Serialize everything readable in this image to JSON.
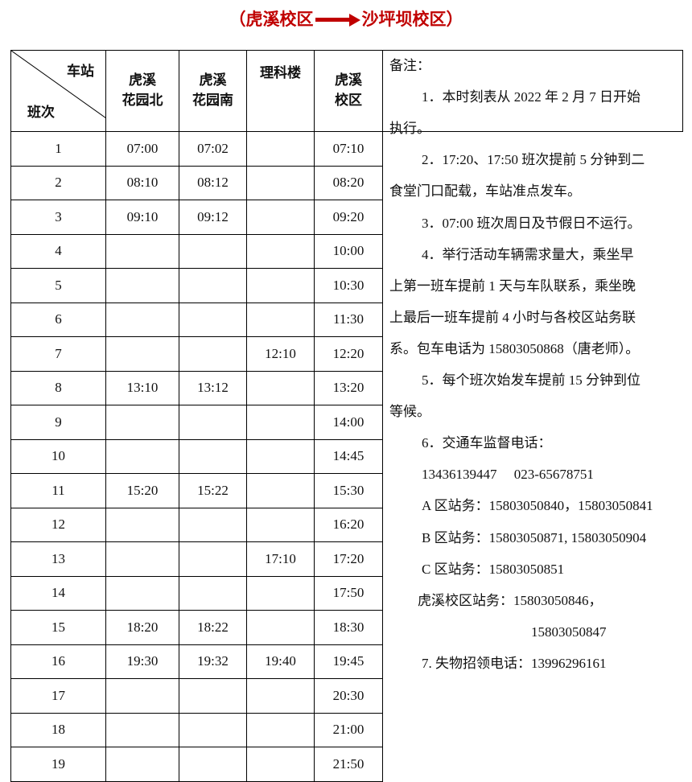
{
  "title": {
    "from": "（虎溪校区",
    "to": "沙坪坝校区）",
    "arrow_icon": "right-arrow",
    "color": "#c00000"
  },
  "header": {
    "station_label": "车站",
    "trip_label": "班次",
    "columns": [
      [
        "虎溪",
        "花园北"
      ],
      [
        "虎溪",
        "花园南"
      ],
      [
        "理科楼",
        ""
      ],
      [
        "虎溪",
        "校区"
      ]
    ]
  },
  "rows": [
    [
      "1",
      "07:00",
      "07:02",
      "",
      "07:10"
    ],
    [
      "2",
      "08:10",
      "08:12",
      "",
      "08:20"
    ],
    [
      "3",
      "09:10",
      "09:12",
      "",
      "09:20"
    ],
    [
      "4",
      "",
      "",
      "",
      "10:00"
    ],
    [
      "5",
      "",
      "",
      "",
      "10:30"
    ],
    [
      "6",
      "",
      "",
      "",
      "11:30"
    ],
    [
      "7",
      "",
      "",
      "12:10",
      "12:20"
    ],
    [
      "8",
      "13:10",
      "13:12",
      "",
      "13:20"
    ],
    [
      "9",
      "",
      "",
      "",
      "14:00"
    ],
    [
      "10",
      "",
      "",
      "",
      "14:45"
    ],
    [
      "11",
      "15:20",
      "15:22",
      "",
      "15:30"
    ],
    [
      "12",
      "",
      "",
      "",
      "16:20"
    ],
    [
      "13",
      "",
      "",
      "17:10",
      "17:20"
    ],
    [
      "14",
      "",
      "",
      "",
      "17:50"
    ],
    [
      "15",
      "18:20",
      "18:22",
      "",
      "18:30"
    ],
    [
      "16",
      "19:30",
      "19:32",
      "19:40",
      "19:45"
    ],
    [
      "17",
      "",
      "",
      "",
      "20:30"
    ],
    [
      "18",
      "",
      "",
      "",
      "21:00"
    ],
    [
      "19",
      "",
      "",
      "",
      "21:50"
    ]
  ],
  "notes": [
    "备注：",
    "1．本时刻表从 2022 年 2 月 7 日开始",
    "执行。",
    "2．17:20、17:50 班次提前 5 分钟到二",
    "食堂门口配载，车站准点发车。",
    "3．07:00 班次周日及节假日不运行。",
    "4．举行活动车辆需求量大，乘坐早",
    "上第一班车提前 1 天与车队联系，乘坐晚",
    "上最后一班车提前 4 小时与各校区站务联",
    "系。包车电话为 15803050868（唐老师）。",
    "5．每个班次始发车提前 15 分钟到位",
    "等候。",
    "6．交通车监督电话：",
    "13436139447　 023-65678751",
    "A 区站务：15803050840，15803050841",
    "B 区站务：15803050871, 15803050904",
    "C 区站务：15803050851",
    "虎溪校区站务：15803050846，",
    "15803050847",
    "7. 失物招领电话：13996296161"
  ]
}
